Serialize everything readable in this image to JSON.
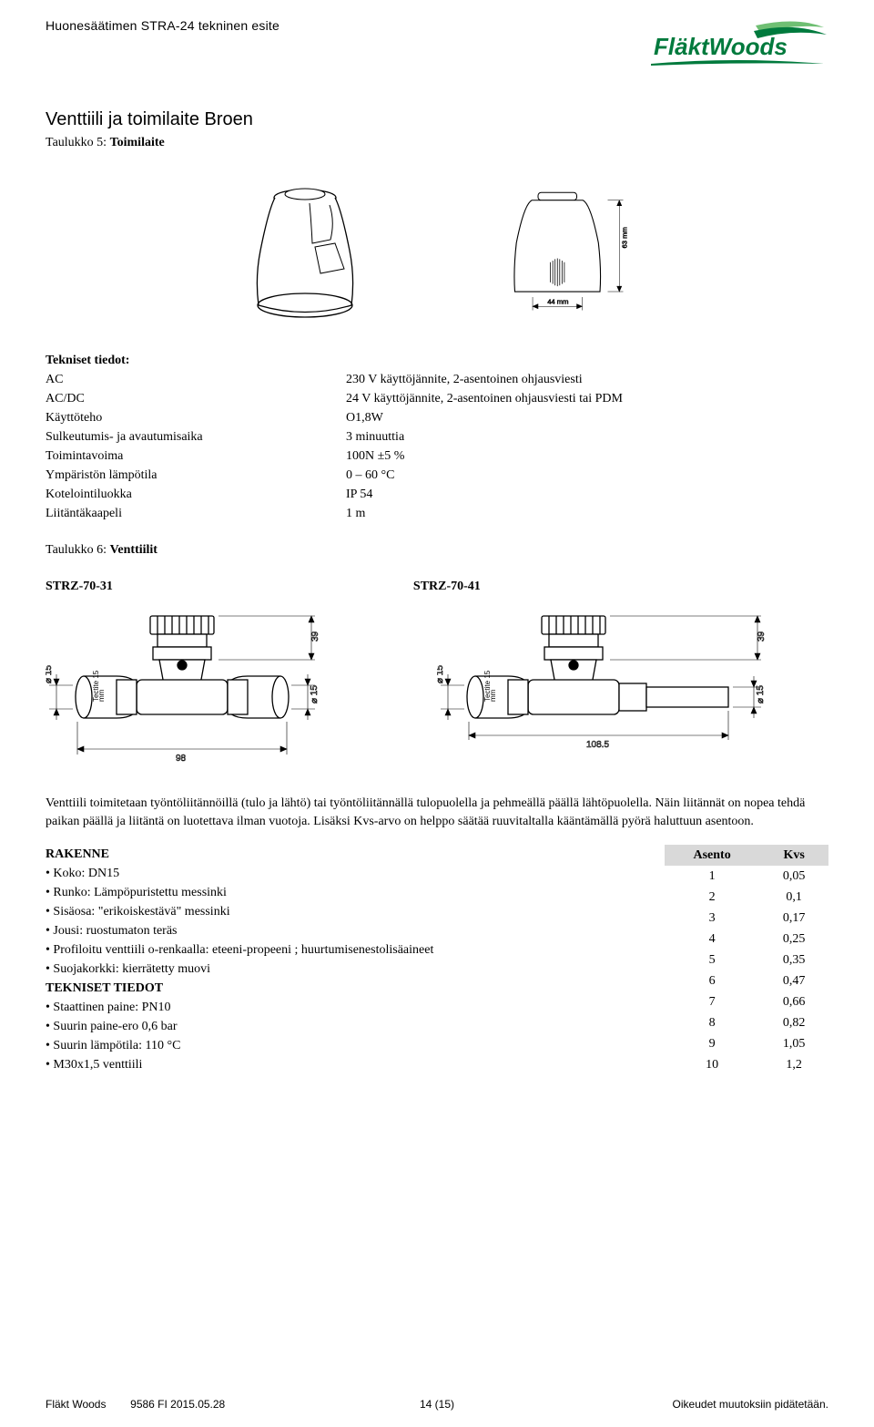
{
  "doc_title": "Huonesäätimen STRA-24 tekninen esite",
  "logo": {
    "text": "FläktWoods",
    "color1": "#007a3d",
    "color2": "#6fbf73"
  },
  "section_title": "Venttiili ja toimilaite Broen",
  "table5_label": "Taulukko 5: Toimilaite",
  "actuator_dims": {
    "width_mm": "44 mm",
    "height_mm": "63 mm"
  },
  "specs_header": "Tekniset tiedot:",
  "specs": [
    {
      "label": "AC",
      "value": "230 V käyttöjännite, 2-asentoinen ohjausviesti"
    },
    {
      "label": "AC/DC",
      "value": "24 V käyttöjännite, 2-asentoinen ohjausviesti tai PDM"
    },
    {
      "label": "Käyttöteho",
      "value": "O1,8W"
    },
    {
      "label": "Sulkeutumis- ja avautumisaika",
      "value": "3 minuuttia"
    },
    {
      "label": "Toimintavoima",
      "value": "100N ±5 %"
    },
    {
      "label": "Ympäristön lämpötila",
      "value": "0 – 60 °C"
    },
    {
      "label": "Kotelointiluokka",
      "value": "IP 54"
    },
    {
      "label": "Liitäntäkaapeli",
      "value": "1 m"
    }
  ],
  "table6_label": "Taulukko 6: Venttiilit",
  "valve_a": "STRZ-70-31",
  "valve_b": "STRZ-70-41",
  "valve_a_dims": {
    "width": "98",
    "height": "39",
    "dia": "15"
  },
  "valve_b_dims": {
    "width": "108.5",
    "height": "39",
    "dia": "15"
  },
  "body_p1": "Venttiili toimitetaan työntöliitännöillä (tulo ja lähtö) tai työntöliitännällä tulopuolella ja pehmeällä päällä lähtöpuolella. Näin liitännät on nopea tehdä paikan päällä ja liitäntä on luotettava ilman vuotoja. Lisäksi Kvs-arvo on helppo säätää ruuvitaltalla kääntämällä pyörä haluttuun asentoon.",
  "rakenne_header": "RAKENNE",
  "rakenne_items": [
    "Koko: DN15",
    "Runko: Lämpöpuristettu messinki",
    "Sisäosa: \"erikoiskestävä\" messinki",
    "Jousi: ruostumaton teräs",
    "Profiloitu venttiili o-renkaalla: eteeni-propeeni ; huurtumisenestolisäaineet",
    "Suojakorkki: kierrätetty muovi"
  ],
  "tekniset_header": "TEKNISET TIEDOT",
  "tekniset_items": [
    "Staattinen paine: PN10",
    "Suurin paine-ero 0,6 bar",
    "Suurin lämpötila: 110 °C",
    "M30x1,5 venttiili"
  ],
  "kvs_headers": [
    "Asento",
    "Kvs"
  ],
  "kvs_rows": [
    [
      "1",
      "0,05"
    ],
    [
      "2",
      "0,1"
    ],
    [
      "3",
      "0,17"
    ],
    [
      "4",
      "0,25"
    ],
    [
      "5",
      "0,35"
    ],
    [
      "6",
      "0,47"
    ],
    [
      "7",
      "0,66"
    ],
    [
      "8",
      "0,82"
    ],
    [
      "9",
      "1,05"
    ],
    [
      "10",
      "1,2"
    ]
  ],
  "footer_left": "Fläkt Woods",
  "footer_mid": "9586 FI 2015.05.28",
  "footer_center": "14 (15)",
  "footer_right": "Oikeudet muutoksiin pidätetään."
}
